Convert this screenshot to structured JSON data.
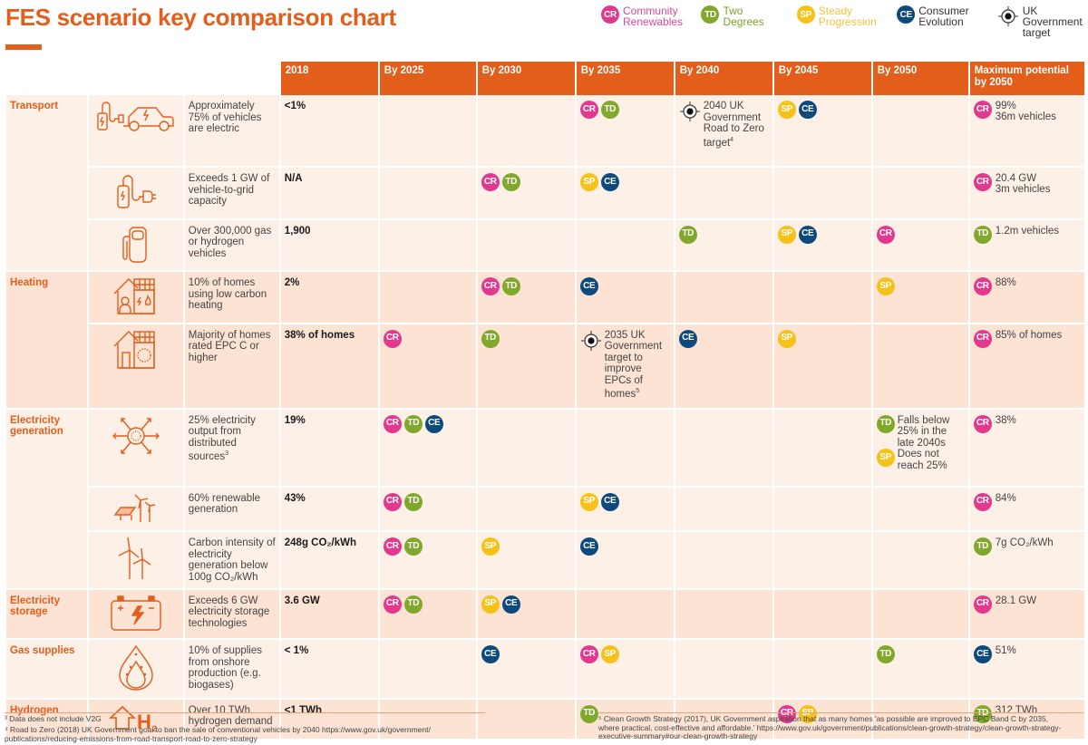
{
  "title": "FES scenario key comparison chart",
  "legend": [
    {
      "code": "CR",
      "label": "Community Renewables",
      "color": "#e2398f"
    },
    {
      "code": "TD",
      "label": "Two Degrees",
      "color": "#80a82b"
    },
    {
      "code": "SP",
      "label": "Steady Progression",
      "color": "#f6c21a"
    },
    {
      "code": "CE",
      "label": "Consumer Evolution",
      "color": "#0c4a7e"
    },
    {
      "code": "target",
      "label": "UK Government target",
      "color": "#1a1a1a"
    }
  ],
  "headers": [
    "2018",
    "By 2025",
    "By 2030",
    "By 2035",
    "By 2040",
    "By 2045",
    "By 2050",
    "Maximum potential by 2050"
  ],
  "rows": [
    {
      "category": "Transport",
      "icon": "electric-car-charger-icon",
      "desc": "Approximately 75% of vehicles are electric",
      "base": "<1%",
      "cells": [
        [],
        [],
        [
          "CR",
          "TD"
        ],
        {
          "target": "2040 UK Government Road to Zero target",
          "sup": "4"
        },
        [
          "SP",
          "CE"
        ],
        []
      ],
      "max": {
        "badge": "CR",
        "text": "99%\n36m vehicles"
      }
    },
    {
      "category": "",
      "icon": "vehicle-to-grid-plug-icon",
      "desc": "Exceeds 1 GW of vehicle-to-grid capacity",
      "base": "N/A",
      "cells": [
        [],
        [
          "CR",
          "TD"
        ],
        [
          "SP",
          "CE"
        ],
        [],
        [],
        []
      ],
      "max": {
        "badge": "CR",
        "text": "20.4 GW\n3m vehicles"
      }
    },
    {
      "category": "",
      "icon": "fuel-pump-icon",
      "desc": "Over 300,000 gas or hydrogen vehicles",
      "base": "1,900",
      "cells": [
        [],
        [],
        [],
        [
          "TD"
        ],
        [
          "SP",
          "CE"
        ],
        [
          "CR"
        ]
      ],
      "max": {
        "badge": "TD",
        "text": "1.2m vehicles"
      }
    },
    {
      "category": "Heating",
      "icon": "low-carbon-home-icon",
      "desc": "10% of homes using low carbon heating",
      "base": "2%",
      "cells": [
        [],
        [
          "CR",
          "TD"
        ],
        [
          "CE"
        ],
        [],
        [],
        [
          "SP"
        ]
      ],
      "max": {
        "badge": "CR",
        "text": "88%"
      }
    },
    {
      "category": "",
      "icon": "epc-home-icon",
      "desc": "Majority of homes rated EPC C or higher",
      "base": "38% of homes",
      "cells": [
        [
          "CR"
        ],
        [
          "TD"
        ],
        {
          "target": "2035 UK Government target to improve EPCs of homes",
          "sup": "5"
        },
        [
          "CE"
        ],
        [
          "SP"
        ],
        []
      ],
      "max": {
        "badge": "CR",
        "text": "85% of homes"
      }
    },
    {
      "category": "Electricity generation",
      "icon": "distributed-sources-icon",
      "desc": "25% electricity output from distributed sources",
      "desc_sup": "3",
      "base": "19%",
      "cells": [
        [
          "CR",
          "TD",
          "CE"
        ],
        [],
        [],
        [],
        [],
        {
          "notes": [
            {
              "badge": "TD",
              "text": "Falls below 25% in the late 2040s"
            },
            {
              "badge": "SP",
              "text": "Does not reach 25%"
            }
          ]
        }
      ],
      "max": {
        "badge": "CR",
        "text": "38%"
      }
    },
    {
      "category": "",
      "icon": "solar-wind-icon",
      "desc": "60% renewable generation",
      "base": "43%",
      "cells": [
        [
          "CR",
          "TD"
        ],
        [],
        [
          "SP",
          "CE"
        ],
        [],
        [],
        []
      ],
      "max": {
        "badge": "CR",
        "text": "84%"
      }
    },
    {
      "category": "",
      "icon": "wind-turbines-icon",
      "desc": "Carbon intensity of electricity generation below 100g CO₂/kWh",
      "base": "248g CO₂/kWh",
      "cells": [
        [
          "CR",
          "TD"
        ],
        [
          "SP"
        ],
        [
          "CE"
        ],
        [],
        [],
        []
      ],
      "max": {
        "badge": "TD",
        "text": "7g CO₂/kWh"
      }
    },
    {
      "category": "Electricity storage",
      "icon": "battery-icon",
      "desc": "Exceeds 6 GW electricity storage technologies",
      "base": "3.6 GW",
      "cells": [
        [
          "CR",
          "TD"
        ],
        [
          "SP",
          "CE"
        ],
        [],
        [],
        [],
        []
      ],
      "max": {
        "badge": "CR",
        "text": "28.1 GW"
      }
    },
    {
      "category": "Gas supplies",
      "icon": "flame-icon",
      "desc": "10% of supplies from onshore production (e.g. biogases)",
      "base": "< 1%",
      "cells": [
        [],
        [
          "CE"
        ],
        [
          "CR",
          "SP"
        ],
        [],
        [],
        [
          "TD"
        ]
      ],
      "max": {
        "badge": "CE",
        "text": "51%"
      }
    },
    {
      "category": "Hydrogen",
      "icon": "hydrogen-icon",
      "desc": "Over 10 TWh hydrogen demand",
      "base": "<1 TWh",
      "cells": [
        [],
        [],
        [
          "TD"
        ],
        [],
        [
          "CR",
          "SP"
        ],
        []
      ],
      "max": {
        "badge": "TD",
        "text": "312 TWh"
      }
    }
  ],
  "footnotes": {
    "fn3": "³ Data does not include V2G",
    "fn4": "⁴ Road to Zero (2018) UK Government goal to ban the sale of conventional vehicles by 2040 https://www.gov.uk/government/ publications/reducing-emissions-from-road-transport-road-to-zero-strategy",
    "fn5": "⁵ Clean Growth Strategy (2017), UK Government aspiration that as many homes 'as possible are improved to EPC Band C by 2035, where practical, cost-effective and affordable.' https://www.gov.uk/government/publications/clean-growth-strategy/clean-growth-strategy-executive-summary#our-clean-growth-strategy"
  }
}
